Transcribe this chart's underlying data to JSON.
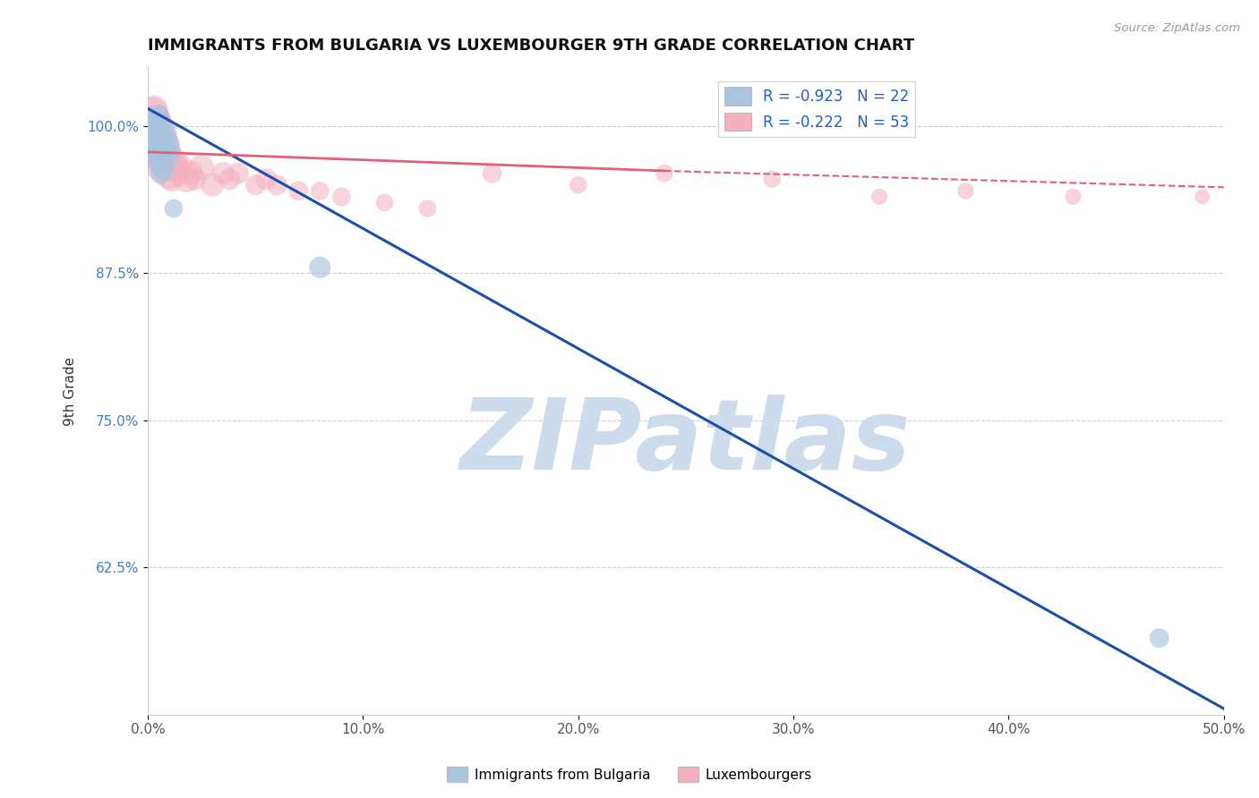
{
  "title": "IMMIGRANTS FROM BULGARIA VS LUXEMBOURGER 9TH GRADE CORRELATION CHART",
  "source_text": "Source: ZipAtlas.com",
  "ylabel": "9th Grade",
  "xlim": [
    0.0,
    0.5
  ],
  "ylim": [
    0.5,
    1.05
  ],
  "xticks": [
    0.0,
    0.1,
    0.2,
    0.3,
    0.4,
    0.5
  ],
  "xticklabels": [
    "0.0%",
    "10.0%",
    "20.0%",
    "30.0%",
    "40.0%",
    "50.0%"
  ],
  "yticks": [
    0.625,
    0.75,
    0.875,
    1.0
  ],
  "yticklabels": [
    "62.5%",
    "75.0%",
    "87.5%",
    "100.0%"
  ],
  "legend_label1": "Immigrants from Bulgaria",
  "legend_label2": "Luxembourgers",
  "R1": -0.923,
  "N1": 22,
  "R2": -0.222,
  "N2": 53,
  "color_blue": "#a8c4e0",
  "color_pink": "#f4b0be",
  "line_blue": "#1a4faa",
  "line_pink": "#e0607a",
  "watermark": "ZIPatlas",
  "watermark_color": "#ccdcec",
  "blue_line": {
    "x0": 0.0,
    "y0": 1.015,
    "x1": 0.5,
    "y1": 0.505
  },
  "pink_line_solid": {
    "x0": 0.0,
    "y0": 0.978,
    "x1": 0.24,
    "y1": 0.962
  },
  "pink_line_dashed": {
    "x0": 0.24,
    "y0": 0.962,
    "x1": 0.5,
    "y1": 0.948
  },
  "blue_scatter": {
    "x": [
      0.001,
      0.002,
      0.002,
      0.003,
      0.003,
      0.004,
      0.004,
      0.005,
      0.005,
      0.005,
      0.006,
      0.006,
      0.006,
      0.007,
      0.007,
      0.008,
      0.008,
      0.009,
      0.01,
      0.012,
      0.08,
      0.47
    ],
    "y": [
      1.0,
      0.995,
      1.005,
      0.99,
      1.0,
      0.98,
      1.005,
      0.97,
      0.99,
      1.01,
      0.96,
      0.98,
      1.0,
      0.965,
      0.99,
      0.975,
      0.995,
      0.985,
      0.98,
      0.93,
      0.88,
      0.565
    ],
    "s": [
      150,
      100,
      120,
      180,
      90,
      200,
      150,
      130,
      160,
      100,
      120,
      180,
      90,
      150,
      110,
      200,
      130,
      160,
      120,
      90,
      120,
      100
    ]
  },
  "pink_scatter": {
    "x": [
      0.001,
      0.001,
      0.002,
      0.002,
      0.003,
      0.003,
      0.003,
      0.004,
      0.004,
      0.004,
      0.005,
      0.005,
      0.005,
      0.006,
      0.006,
      0.006,
      0.007,
      0.007,
      0.008,
      0.008,
      0.009,
      0.009,
      0.01,
      0.01,
      0.011,
      0.012,
      0.013,
      0.015,
      0.016,
      0.018,
      0.02,
      0.022,
      0.025,
      0.03,
      0.035,
      0.038,
      0.042,
      0.05,
      0.055,
      0.06,
      0.07,
      0.08,
      0.09,
      0.11,
      0.13,
      0.16,
      0.2,
      0.24,
      0.29,
      0.34,
      0.38,
      0.43,
      0.49
    ],
    "y": [
      0.995,
      1.005,
      0.99,
      1.01,
      0.985,
      1.0,
      1.015,
      0.98,
      1.005,
      0.995,
      0.975,
      0.99,
      1.005,
      0.97,
      0.985,
      1.0,
      0.975,
      0.99,
      0.97,
      0.985,
      0.965,
      0.98,
      0.96,
      0.975,
      0.955,
      0.97,
      0.965,
      0.96,
      0.965,
      0.955,
      0.96,
      0.955,
      0.965,
      0.95,
      0.96,
      0.955,
      0.96,
      0.95,
      0.955,
      0.95,
      0.945,
      0.945,
      0.94,
      0.935,
      0.93,
      0.96,
      0.95,
      0.96,
      0.955,
      0.94,
      0.945,
      0.94,
      0.94
    ],
    "s": [
      200,
      180,
      160,
      300,
      220,
      280,
      180,
      250,
      220,
      180,
      300,
      200,
      160,
      350,
      250,
      180,
      200,
      220,
      180,
      160,
      200,
      180,
      250,
      180,
      160,
      200,
      180,
      160,
      140,
      180,
      150,
      130,
      160,
      140,
      130,
      120,
      120,
      110,
      120,
      110,
      100,
      90,
      90,
      80,
      80,
      100,
      80,
      80,
      80,
      70,
      70,
      70,
      60
    ]
  }
}
